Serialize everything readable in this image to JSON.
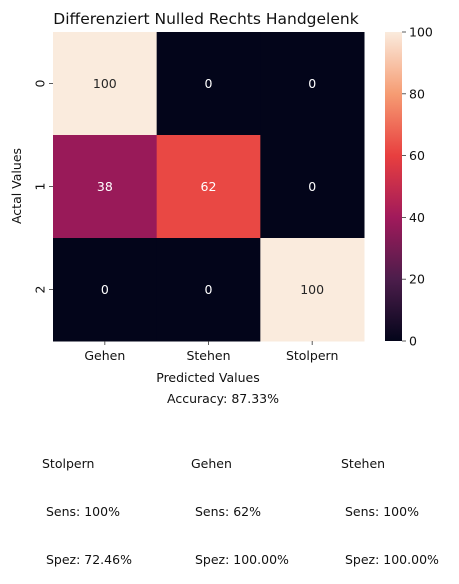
{
  "chart_data": {
    "type": "heatmap",
    "title": "Differenziert Nulled Rechts Handgelenk",
    "xlabel": "Predicted Values",
    "ylabel": "Actal Values",
    "x_categories": [
      "Gehen",
      "Stehen",
      "Stolpern"
    ],
    "y_categories": [
      "0",
      "1",
      "2"
    ],
    "values": [
      [
        100,
        0,
        0
      ],
      [
        38,
        62,
        0
      ],
      [
        0,
        0,
        100
      ]
    ],
    "colorbar": {
      "range": [
        0,
        100
      ],
      "ticks": [
        "0",
        "20",
        "40",
        "60",
        "80",
        "100"
      ]
    },
    "colormap": "rocket"
  },
  "footer": {
    "accuracy": "Accuracy: 87.33%",
    "stats": [
      {
        "name": "Stolpern",
        "sens": " Sens: 100%",
        "spez": " Spez: 72.46%"
      },
      {
        "name": "Gehen",
        "sens": " Sens: 62%",
        "spez": " Spez: 100.00%"
      },
      {
        "name": "Stehen",
        "sens": " Sens: 100%",
        "spez": " Spez: 100.00%"
      }
    ]
  }
}
